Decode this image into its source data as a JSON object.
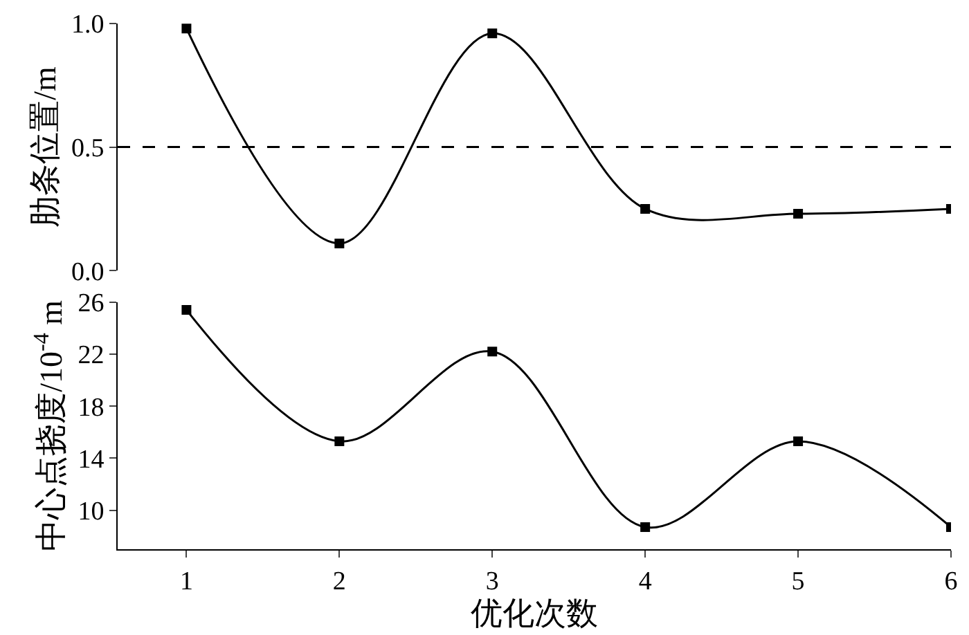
{
  "chart_data": [
    {
      "type": "line",
      "ylabel": "肋条位置/m",
      "x": [
        1,
        2,
        3,
        4,
        5,
        6
      ],
      "values": [
        0.98,
        0.11,
        0.96,
        0.25,
        0.23,
        0.25
      ],
      "color": "#000000",
      "xlim": [
        0.55,
        6
      ],
      "ylim": [
        0,
        1
      ],
      "yticks": [
        {
          "value": 0,
          "label": "0.0"
        },
        0.5,
        {
          "value": 1,
          "label": "1.0"
        }
      ],
      "ref_lines": [
        {
          "axis": "y",
          "value": 0.5,
          "line_style": "dashed",
          "color": "#000000"
        }
      ],
      "marker": "square",
      "line_style": "solid",
      "tick_labels": "y"
    },
    {
      "type": "line",
      "xlabel": "优化次数",
      "ylabel": "中心点挠度/10$^{-4}$ m",
      "x": [
        1,
        2,
        3,
        4,
        5,
        6
      ],
      "values": [
        25.4,
        15.3,
        22.2,
        8.7,
        15.3,
        8.7
      ],
      "color": "#000000",
      "xlim": [
        0.55,
        6
      ],
      "xticks": [
        1,
        2,
        3,
        4,
        5,
        6
      ],
      "ylim": [
        7,
        26
      ],
      "yticks": [
        10,
        14,
        18,
        22,
        26
      ],
      "marker": "square",
      "line_style": "solid"
    }
  ]
}
